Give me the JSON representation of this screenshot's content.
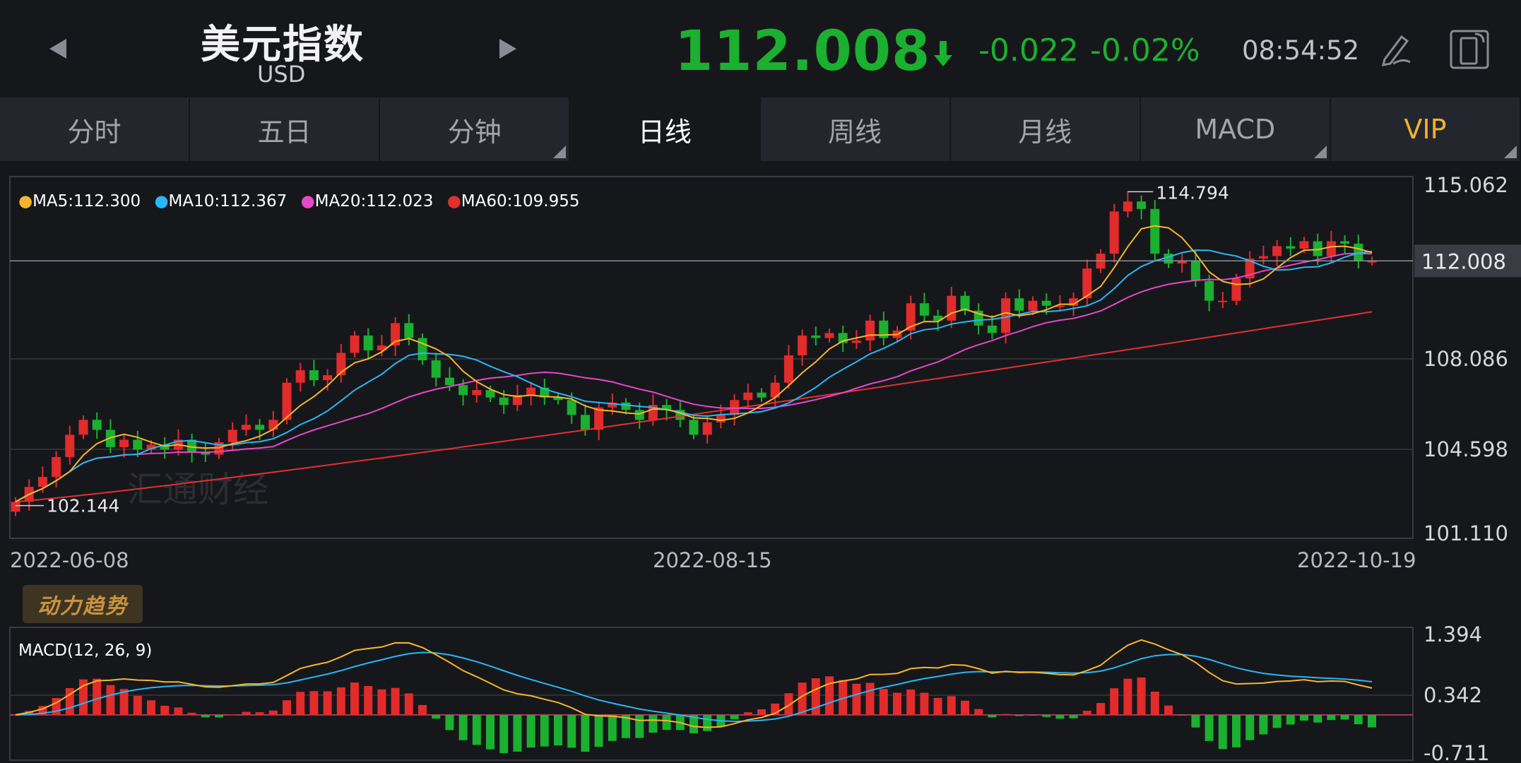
{
  "header": {
    "title": "美元指数",
    "subtitle": "USD",
    "price": "112.008",
    "change": "-0.022",
    "change_pct": "-0.02%",
    "time": "08:54:52",
    "colors": {
      "down": "#1bb02f",
      "up": "#e22b2b"
    },
    "icons": [
      "arrow-left-icon",
      "arrow-right-icon",
      "down-arrow-icon",
      "pen-icon",
      "rotate-screen-icon"
    ]
  },
  "tabs": [
    "分时",
    "五日",
    "分钟",
    "日线",
    "周线",
    "月线",
    "MACD",
    "VIP"
  ],
  "active_tab": "日线",
  "legend": {
    "ma5": "MA5:112.300",
    "ma10": "MA10:112.367",
    "ma20": "MA20:112.023",
    "ma60": "MA60:109.955"
  },
  "ma_colors": {
    "ma5": "#f5b62b",
    "ma10": "#29b6f6",
    "ma20": "#e548c8",
    "ma60": "#e0312f"
  },
  "badge": "动力趋势",
  "macd_label": "MACD(12, 26, 9)",
  "watermark": "汇通财经",
  "chart_data": [
    {
      "type": "candlestick",
      "x_ticks": [
        "2022-06-08",
        "2022-08-15",
        "2022-10-19"
      ],
      "y_ticks": [
        "115.062",
        "108.086",
        "104.598",
        "101.110"
      ],
      "ylim": [
        101.11,
        115.062
      ],
      "current_price": 112.008,
      "current_price_label": "112.008",
      "high_label": "114.794",
      "high": 114.794,
      "low_label": "102.144",
      "low": 102.144,
      "closes": [
        102.3,
        102.9,
        103.3,
        104.1,
        105.0,
        105.6,
        105.2,
        104.5,
        104.8,
        104.4,
        104.6,
        104.4,
        104.8,
        104.3,
        104.2,
        104.7,
        105.2,
        105.4,
        105.2,
        105.6,
        107.1,
        107.6,
        107.2,
        107.4,
        108.3,
        109.0,
        108.4,
        108.6,
        109.5,
        108.9,
        108.0,
        107.3,
        107.0,
        106.6,
        106.8,
        106.5,
        106.2,
        106.6,
        106.9,
        106.5,
        106.4,
        105.8,
        105.2,
        106.1,
        106.3,
        106.0,
        105.6,
        106.2,
        106.0,
        105.6,
        105.0,
        105.5,
        105.8,
        106.4,
        106.7,
        106.5,
        107.1,
        108.2,
        109.0,
        108.9,
        109.1,
        108.7,
        108.8,
        109.6,
        108.9,
        109.2,
        110.3,
        109.8,
        109.6,
        110.6,
        110.0,
        109.4,
        109.1,
        110.5,
        110.0,
        110.4,
        110.2,
        110.2,
        110.5,
        111.7,
        112.3,
        114.0,
        114.4,
        114.1,
        112.3,
        111.9,
        112.0,
        111.2,
        110.4,
        110.4,
        111.3,
        112.1,
        112.2,
        112.6,
        112.5,
        112.8,
        112.2,
        112.8,
        112.7,
        112.0,
        112.0
      ]
    },
    {
      "type": "bar+line",
      "y_ticks": [
        "1.394",
        "0.342",
        "-0.711"
      ],
      "ylim": [
        -0.711,
        1.394
      ]
    }
  ]
}
